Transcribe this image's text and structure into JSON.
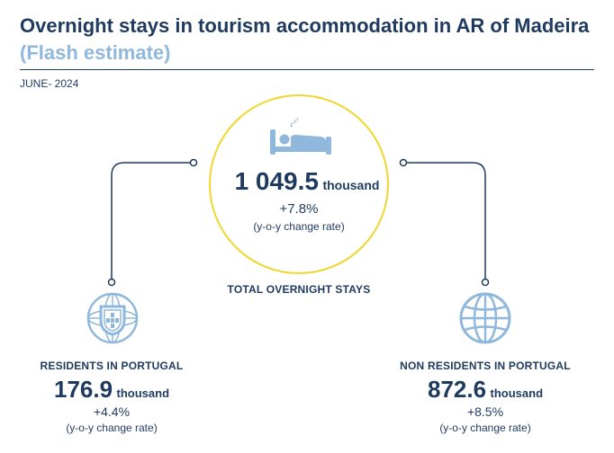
{
  "header": {
    "title": "Overnight stays in tourism accommodation in AR of Madeira",
    "subtitle": "(Flash estimate)",
    "date": "JUNE- 2024"
  },
  "total": {
    "icon": "bed-icon",
    "value": "1 049.5",
    "unit": "thousand",
    "change": "+7.8%",
    "change_note": "(y-o-y change rate)",
    "label": "TOTAL OVERNIGHT STAYS"
  },
  "residents": {
    "icon": "portugal-coat-of-arms-icon",
    "label": "RESIDENTS IN PORTUGAL",
    "value": "176.9",
    "unit": "thousand",
    "change": "+4.4%",
    "change_note": "(y-o-y change rate)"
  },
  "non_residents": {
    "icon": "globe-icon",
    "label": "NON RESIDENTS IN PORTUGAL",
    "value": "872.6",
    "unit": "thousand",
    "change": "+8.5%",
    "change_note": "(y-o-y change rate)"
  },
  "colors": {
    "navy": "#1f3a5f",
    "light_blue": "#8fb8dc",
    "circle_border": "#f0d630"
  }
}
